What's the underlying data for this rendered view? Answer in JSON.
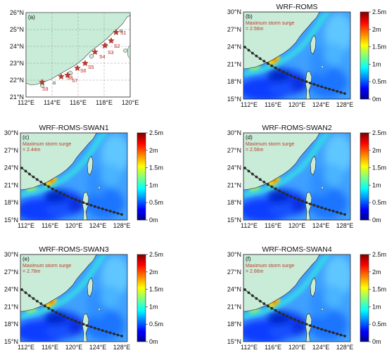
{
  "figure": {
    "panel_a": {
      "label": "(a)",
      "lat_ticks": [
        "26°N",
        "25°N",
        "24°N",
        "23°N",
        "22°N",
        "21°N"
      ],
      "lon_ticks": [
        "112°E",
        "114°E",
        "116°E",
        "118°E",
        "120°E"
      ],
      "stations": [
        "S1",
        "S2",
        "S3",
        "S4",
        "S5",
        "S6",
        "S7",
        "S8",
        "S9"
      ],
      "colors": {
        "land": "#c8ecd8",
        "water": "#ffffff",
        "star": "#c0392b"
      }
    },
    "map_panels": [
      {
        "label": "(b)",
        "title": "WRF-ROMS",
        "note_line1": "Maximum storm surge",
        "note_line2": "= 2.56m"
      },
      {
        "label": "(c)",
        "title": "WRF-ROMS-SWAN1",
        "note_line1": "Maximum storm surge",
        "note_line2": "= 2.44m"
      },
      {
        "label": "(d)",
        "title": "WRF-ROMS-SWAN2",
        "note_line1": "Maximum storm surge",
        "note_line2": "= 2.56m"
      },
      {
        "label": "(e)",
        "title": "WRF-ROMS-SWAN3",
        "note_line1": "Maximum storm surge",
        "note_line2": "= 2.78m"
      },
      {
        "label": "(f)",
        "title": "WRF-ROMS-SWAN4",
        "note_line1": "Maximum storm surge",
        "note_line2": "= 2.66m"
      }
    ],
    "map_lat_ticks": [
      "30°N",
      "27°N",
      "24°N",
      "21°N",
      "18°N",
      "15°N"
    ],
    "map_lon_ticks": [
      "112°E",
      "116°E",
      "120°E",
      "124°E",
      "128°E"
    ],
    "colorbar_ticks": [
      "2.5m",
      "2m",
      "1.5m",
      "1m",
      "0.5m",
      "0m"
    ],
    "colors": {
      "land": "#c8ecd8",
      "sea_base": "#3fa0ff",
      "track": "#2a2a2a",
      "surge_scale": [
        "#00008f",
        "#0000ff",
        "#0080ff",
        "#00ffff",
        "#80ff80",
        "#ffff00",
        "#ff8000",
        "#ff0000",
        "#800000"
      ]
    }
  }
}
